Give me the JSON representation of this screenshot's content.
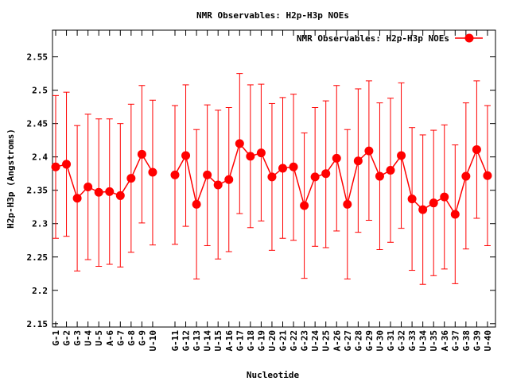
{
  "chart_data": {
    "type": "line",
    "title": "NMR Observables: H2p-H3p NOEs",
    "xlabel": "Nucleotide",
    "ylabel": "H2p-H3p (Angstroms)",
    "ylim": [
      2.145,
      2.59
    ],
    "yticks": [
      2.15,
      2.2,
      2.25,
      2.3,
      2.35,
      2.4,
      2.45,
      2.5,
      2.55
    ],
    "ytick_labels": [
      "2.15",
      "2.2",
      "2.25",
      "2.3",
      "2.35",
      "2.4",
      "2.45",
      "2.5",
      "2.55"
    ],
    "legend": "top-right",
    "series": [
      {
        "name": "NMR Observables: H2p-H3p NOEs",
        "color": "#ff0000",
        "segments": [
          {
            "categories": [
              "G-1",
              "G-2",
              "G-3",
              "U-4",
              "U-5",
              "A-6",
              "G-7",
              "G-8",
              "G-9",
              "U-10"
            ],
            "values": [
              2.385,
              2.389,
              2.338,
              2.355,
              2.347,
              2.348,
              2.342,
              2.368,
              2.404,
              2.377
            ],
            "err_low": [
              2.278,
              2.281,
              2.229,
              2.246,
              2.236,
              2.239,
              2.235,
              2.257,
              2.301,
              2.268
            ],
            "err_high": [
              2.492,
              2.497,
              2.447,
              2.464,
              2.457,
              2.457,
              2.45,
              2.479,
              2.507,
              2.485
            ]
          },
          {
            "categories": [
              "G-11",
              "G-12",
              "G-13",
              "U-14",
              "U-15",
              "A-16",
              "G-17",
              "G-18",
              "G-19",
              "U-20",
              "G-21",
              "G-22",
              "G-23",
              "U-24",
              "U-25",
              "A-26",
              "G-27",
              "G-28",
              "G-29",
              "U-30",
              "G-31",
              "G-32",
              "G-33",
              "U-34",
              "U-35",
              "A-36",
              "G-37",
              "G-38",
              "G-39",
              "U-40"
            ],
            "values": [
              2.373,
              2.402,
              2.329,
              2.373,
              2.358,
              2.366,
              2.42,
              2.401,
              2.406,
              2.37,
              2.383,
              2.385,
              2.327,
              2.37,
              2.375,
              2.398,
              2.329,
              2.394,
              2.409,
              2.371,
              2.38,
              2.402,
              2.337,
              2.321,
              2.331,
              2.34,
              2.314,
              2.371,
              2.411,
              2.372
            ],
            "err_low": [
              2.269,
              2.296,
              2.217,
              2.267,
              2.247,
              2.258,
              2.315,
              2.294,
              2.304,
              2.26,
              2.278,
              2.275,
              2.218,
              2.266,
              2.264,
              2.289,
              2.217,
              2.287,
              2.305,
              2.261,
              2.272,
              2.293,
              2.23,
              2.209,
              2.222,
              2.232,
              2.21,
              2.262,
              2.308,
              2.267
            ],
            "err_high": [
              2.477,
              2.508,
              2.441,
              2.478,
              2.47,
              2.474,
              2.525,
              2.508,
              2.509,
              2.48,
              2.489,
              2.494,
              2.436,
              2.474,
              2.484,
              2.507,
              2.441,
              2.502,
              2.514,
              2.481,
              2.488,
              2.511,
              2.444,
              2.433,
              2.44,
              2.448,
              2.418,
              2.481,
              2.514,
              2.477
            ]
          }
        ]
      }
    ]
  }
}
